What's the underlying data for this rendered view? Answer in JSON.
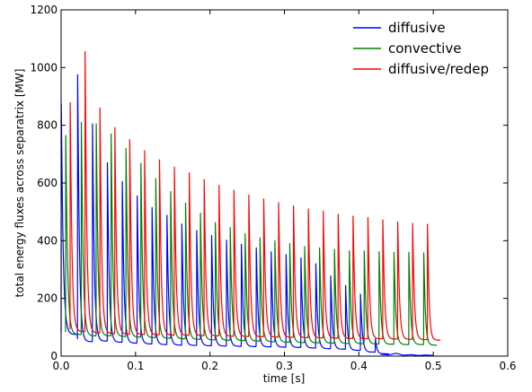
{
  "chart_data": {
    "type": "line",
    "title": "",
    "xlabel": "time [s]",
    "ylabel": "total energy fluxes across separatrix [MW]",
    "xlim": [
      0.0,
      0.6
    ],
    "ylim": [
      0,
      1200
    ],
    "xticks": [
      0.0,
      0.1,
      0.2,
      0.3,
      0.4,
      0.5,
      0.6
    ],
    "xtick_labels": [
      "0.0",
      "0.1",
      "0.2",
      "0.3",
      "0.4",
      "0.5",
      "0.6"
    ],
    "yticks": [
      0,
      200,
      400,
      600,
      800,
      1000,
      1200
    ],
    "ytick_labels": [
      "0",
      "200",
      "400",
      "600",
      "800",
      "1000",
      "1200"
    ],
    "grid": false,
    "legend_position": "top-right",
    "series": [
      {
        "name": "diffusive",
        "color": "#0000ff",
        "baseline": 60,
        "spike_times": [
          0.0,
          0.022,
          0.042,
          0.062,
          0.082,
          0.102,
          0.122,
          0.142,
          0.162,
          0.182,
          0.202,
          0.222,
          0.242,
          0.262,
          0.282,
          0.302,
          0.322,
          0.342,
          0.362,
          0.382,
          0.402,
          0.422
        ],
        "spike_peaks": [
          875,
          975,
          805,
          670,
          605,
          555,
          515,
          488,
          458,
          435,
          418,
          402,
          388,
          375,
          362,
          352,
          340,
          320,
          278,
          245,
          215,
          60
        ],
        "trough_values": [
          75,
          50,
          52,
          48,
          45,
          42,
          40,
          38,
          37,
          36,
          35,
          34,
          33,
          32,
          31,
          30,
          28,
          26,
          24,
          20,
          14,
          8
        ],
        "tail_x": [
          0.43,
          0.44,
          0.45,
          0.46,
          0.47,
          0.48,
          0.49,
          0.5
        ],
        "tail_y": [
          6,
          4,
          10,
          3,
          5,
          2,
          4,
          2
        ]
      },
      {
        "name": "convective",
        "color": "#008000",
        "baseline": 60,
        "spike_times": [
          0.006,
          0.027,
          0.047,
          0.067,
          0.087,
          0.107,
          0.127,
          0.147,
          0.167,
          0.187,
          0.207,
          0.227,
          0.247,
          0.267,
          0.287,
          0.307,
          0.327,
          0.347,
          0.367,
          0.387,
          0.407,
          0.427,
          0.447,
          0.467,
          0.487
        ],
        "spike_peaks": [
          765,
          810,
          805,
          770,
          720,
          668,
          615,
          570,
          530,
          495,
          463,
          445,
          425,
          410,
          400,
          390,
          380,
          375,
          370,
          365,
          365,
          362,
          360,
          360,
          358
        ],
        "trough_values": [
          75,
          70,
          70,
          68,
          66,
          64,
          62,
          60,
          58,
          56,
          55,
          54,
          52,
          50,
          48,
          47,
          46,
          45,
          44,
          43,
          42,
          41,
          40,
          40,
          38
        ]
      },
      {
        "name": "diffusive/redep",
        "color": "#ff0000",
        "baseline": 80,
        "spike_times": [
          0.012,
          0.032,
          0.052,
          0.072,
          0.092,
          0.112,
          0.132,
          0.152,
          0.172,
          0.192,
          0.212,
          0.232,
          0.252,
          0.272,
          0.292,
          0.312,
          0.332,
          0.352,
          0.372,
          0.392,
          0.412,
          0.432,
          0.452,
          0.472,
          0.492
        ],
        "spike_peaks": [
          878,
          1055,
          860,
          792,
          750,
          712,
          680,
          655,
          635,
          612,
          592,
          575,
          558,
          545,
          532,
          520,
          510,
          502,
          492,
          485,
          480,
          472,
          465,
          460,
          457
        ],
        "trough_values": [
          85,
          80,
          78,
          76,
          75,
          74,
          73,
          72,
          71,
          70,
          69,
          68,
          67,
          66,
          65,
          64,
          63,
          62,
          61,
          60,
          60,
          59,
          58,
          57,
          55
        ]
      }
    ]
  }
}
